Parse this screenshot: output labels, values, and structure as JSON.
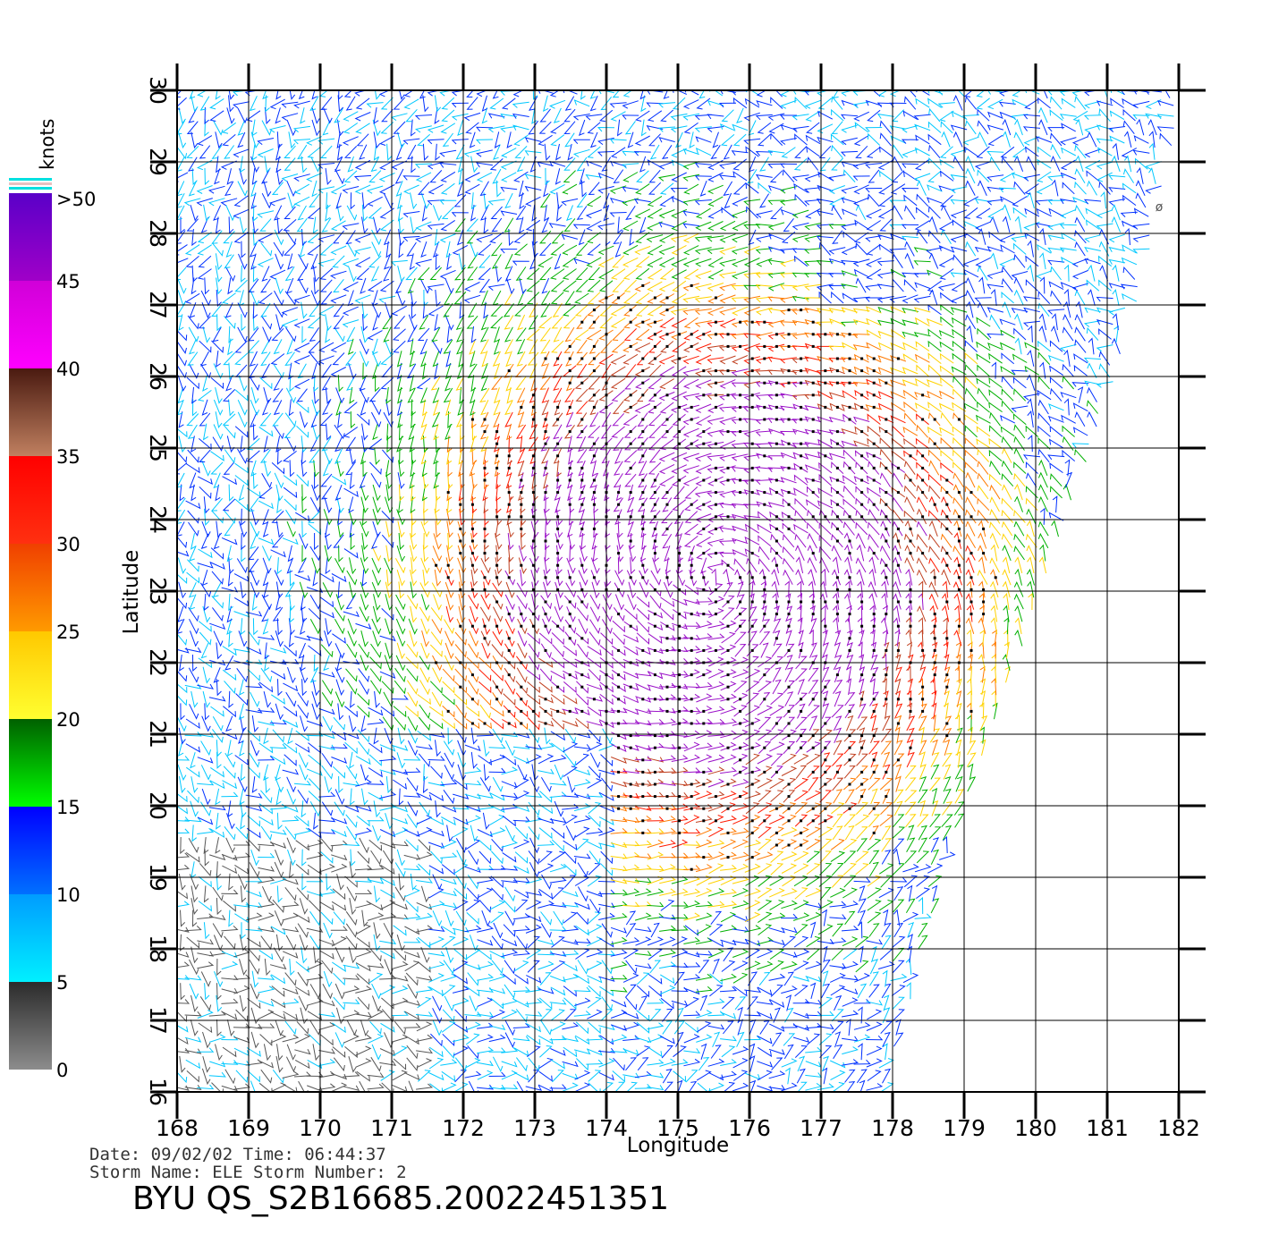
{
  "legend": {
    "title": "knots",
    "labels": [
      ">50",
      "45",
      "40",
      "35",
      "30",
      "25",
      "20",
      "15",
      "10",
      "5",
      "0"
    ],
    "bands": [
      {
        "from": 0,
        "to": 5,
        "top": "#2b2b2b",
        "bottom": "#8c8c8c"
      },
      {
        "from": 5,
        "to": 10,
        "top": "#009cff",
        "bottom": "#00f0ff"
      },
      {
        "from": 10,
        "to": 15,
        "top": "#0000ff",
        "bottom": "#0070ff"
      },
      {
        "from": 15,
        "to": 20,
        "top": "#006000",
        "bottom": "#00ff00"
      },
      {
        "from": 20,
        "to": 25,
        "top": "#ffc800",
        "bottom": "#ffff30"
      },
      {
        "from": 25,
        "to": 30,
        "top": "#f04000",
        "bottom": "#ff9a00"
      },
      {
        "from": 30,
        "to": 35,
        "top": "#ff0000",
        "bottom": "#ff3010"
      },
      {
        "from": 35,
        "to": 40,
        "top": "#4a1a10",
        "bottom": "#c08060"
      },
      {
        "from": 40,
        "to": 45,
        "top": "#d000d8",
        "bottom": "#ff00ff"
      },
      {
        "from": 45,
        "to": 50,
        "top": "#5a00c8",
        "bottom": "#a000c8"
      }
    ]
  },
  "map": {
    "lon_range": [
      168,
      182
    ],
    "lat_range": [
      16,
      30
    ],
    "lon_ticks": [
      "168",
      "169",
      "170",
      "171",
      "172",
      "173",
      "174",
      "175",
      "176",
      "177",
      "178",
      "179",
      "180",
      "181",
      "182"
    ],
    "lat_ticks": [
      "16",
      "17",
      "18",
      "19",
      "20",
      "21",
      "22",
      "23",
      "24",
      "25",
      "26",
      "27",
      "28",
      "29",
      "30"
    ],
    "xlabel": "Longitude",
    "ylabel": "Latitude",
    "storm_center": {
      "lon": 175.5,
      "lat": 23.2
    },
    "swath_edge": [
      [
        182,
        30
      ],
      [
        181.2,
        26.5
      ],
      [
        179,
        20
      ],
      [
        178.1,
        16.8
      ],
      [
        178,
        16
      ]
    ]
  },
  "info": {
    "line1": "Date: 09/02/02  Time: 06:44:37",
    "line2": "Storm Name: ELE  Storm Number: 2",
    "title": "BYU QS_S2B16685.20022451351"
  }
}
